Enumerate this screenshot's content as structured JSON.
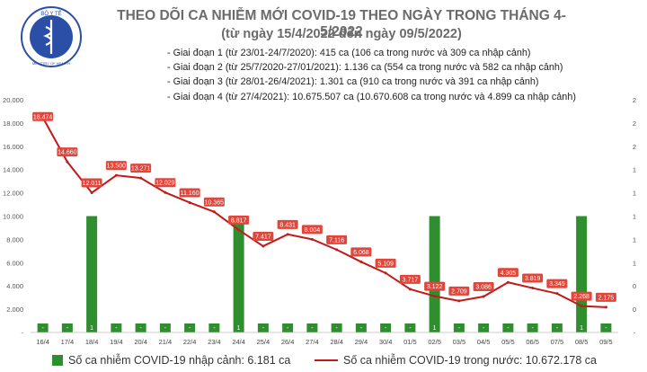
{
  "header": {
    "title": "THEO DÕI CA NHIỄM MỚI COVID-19 THEO NGÀY TRONG THÁNG 4-5/2022",
    "subtitle": "(từ ngày 15/4/2022 đến ngày 09/5/2022)",
    "logo_text": "BỘ Y TẾ",
    "logo_text_bottom": "MINISTRY OF HEALTH"
  },
  "notes": [
    "- Giai đoạn 1 (từ 23/01-24/7/2020): 415 ca (106 ca trong nước và 309 ca nhập cảnh)",
    "- Giai đoạn 2 (từ 25/7/2020-27/01/2021): 1.136 ca (554 ca trong nước và 582 ca nhập cảnh)",
    "- Giai đoạn 3 (từ 28/01-26/4/2021): 1.301 ca (910 ca trong nước và 391 ca nhập cảnh)",
    "- Giai đoạn 4 (từ 27/4/2021): 10.675.507 ca (10.670.608 ca trong nước và 4.899 ca nhập cảnh)"
  ],
  "colors": {
    "bar": "#2f8f2f",
    "line": "#c21a1a",
    "point_label_bg": "#e0463a",
    "logo": "#2b4fa6"
  },
  "legend": {
    "bar_label": "Số ca nhiễm COVID-19 nhập cảnh: 6.181 ca",
    "line_label": "Số ca nhiễm COVID-19 trong nước: 10.672.178 ca"
  },
  "chart_data": {
    "type": "bar+line",
    "categories": [
      "16/4",
      "17/4",
      "18/4",
      "19/4",
      "20/4",
      "21/4",
      "22/4",
      "23/4",
      "24/4",
      "25/4",
      "26/4",
      "27/4",
      "28/4",
      "29/4",
      "30/4",
      "01/5",
      "02/5",
      "03/5",
      "04/5",
      "05/5",
      "06/5",
      "07/5",
      "08/5",
      "09/5"
    ],
    "left_axis": {
      "ticks": [
        "20.000",
        "18.000",
        "16.000",
        "14.000",
        "12.000",
        "10.000",
        "8.000",
        "6.000",
        "4.000",
        "2.000",
        "-"
      ],
      "ylim": [
        0,
        20000
      ]
    },
    "right_axis": {
      "ticks": [
        "2",
        "2",
        "2",
        "1",
        "1",
        "1",
        "1",
        "1",
        "0",
        "0",
        "-"
      ],
      "ylim": [
        0,
        2
      ]
    },
    "series": [
      {
        "kind": "bar",
        "axis": "right",
        "values": [
          0,
          0,
          1,
          0,
          0,
          0,
          0,
          0,
          1,
          0,
          0,
          0,
          0,
          0,
          0,
          0,
          1,
          0,
          0,
          0,
          0,
          0,
          1,
          0
        ],
        "labels": [
          "-",
          "-",
          "1",
          "-",
          "-",
          "-",
          "-",
          "-",
          "1",
          "-",
          "-",
          "-",
          "-",
          "-",
          "-",
          "-",
          "1",
          "-",
          "-",
          "-",
          "-",
          "-",
          "1",
          "-"
        ]
      },
      {
        "kind": "line",
        "axis": "left",
        "values": [
          18474,
          14660,
          12011,
          13500,
          13271,
          12029,
          11160,
          10365,
          8817,
          7417,
          8431,
          8004,
          7116,
          6068,
          5109,
          3717,
          3122,
          2709,
          3086,
          4305,
          3819,
          3345,
          2268,
          2175
        ],
        "labels": [
          "18.474",
          "14.660",
          "12.011",
          "13.500",
          "13.271",
          "12.029",
          "11.160",
          "10.365",
          "8.817",
          "7.417",
          "8.431",
          "8.004",
          "7.116",
          "6.068",
          "5.109",
          "3.717",
          "3.122",
          "2.709",
          "3.086",
          "4.305",
          "3.819",
          "3.345",
          "2.268",
          "2.175"
        ]
      }
    ]
  }
}
